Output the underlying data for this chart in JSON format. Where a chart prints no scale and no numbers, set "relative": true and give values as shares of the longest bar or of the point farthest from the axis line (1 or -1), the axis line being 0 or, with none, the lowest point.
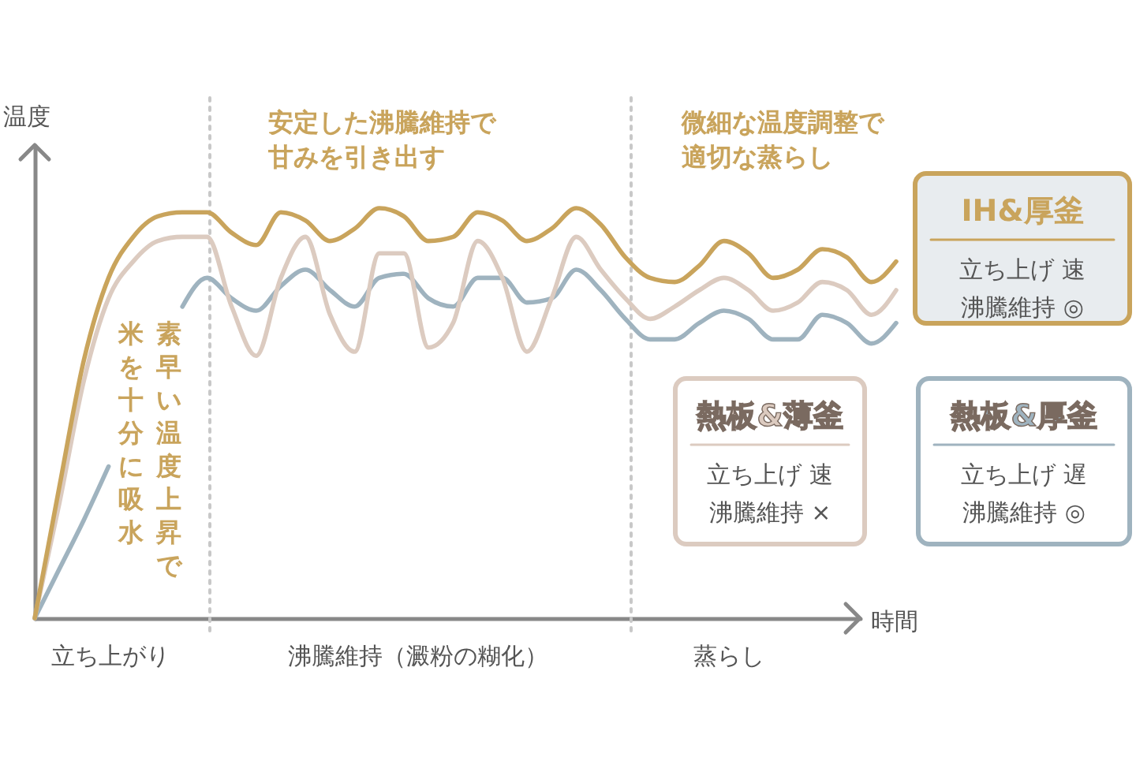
{
  "chart_data": {
    "type": "line",
    "relative": true,
    "xlabel": "時間",
    "ylabel": "温度",
    "legend": "right",
    "categories": [
      null,
      null,
      null,
      null,
      null,
      null,
      null,
      null,
      null,
      null,
      null,
      null,
      null,
      null,
      null,
      null,
      null,
      null,
      null,
      null,
      null,
      null,
      null,
      null,
      null,
      null,
      null,
      null,
      null,
      null,
      null,
      null,
      null,
      null,
      null,
      null
    ],
    "series": [
      {
        "name": "熱板&厚釜",
        "color": "#9fb3bf",
        "values": [
          0,
          0.12,
          0.24,
          0.37,
          null,
          null,
          0.76,
          0.83,
          0.78,
          0.75,
          0.81,
          0.85,
          0.8,
          0.76,
          0.83,
          0.84,
          0.78,
          0.76,
          0.83,
          0.83,
          0.77,
          0.78,
          0.85,
          0.8,
          0.73,
          0.68,
          0.68,
          0.72,
          0.75,
          0.73,
          0.68,
          0.68,
          0.74,
          0.72,
          0.67,
          0.72
        ]
      },
      {
        "name": "熱板&薄釜",
        "color": "#dccbc0",
        "values": [
          0,
          0.28,
          0.58,
          0.78,
          0.87,
          0.92,
          0.93,
          0.93,
          0.76,
          0.64,
          0.83,
          0.93,
          0.74,
          0.65,
          0.89,
          0.89,
          0.66,
          0.72,
          0.92,
          0.83,
          0.65,
          0.78,
          0.93,
          0.85,
          0.78,
          0.73,
          0.76,
          0.8,
          0.83,
          0.8,
          0.75,
          0.77,
          0.82,
          0.8,
          0.74,
          0.8
        ]
      },
      {
        "name": "IH&厚釜",
        "color": "#c9a45c",
        "values": [
          0,
          0.32,
          0.63,
          0.83,
          0.93,
          0.98,
          0.99,
          0.99,
          0.94,
          0.91,
          0.99,
          0.97,
          0.92,
          0.95,
          1.0,
          0.98,
          0.92,
          0.93,
          0.99,
          0.97,
          0.92,
          0.95,
          1.0,
          0.96,
          0.88,
          0.83,
          0.82,
          0.86,
          0.92,
          0.89,
          0.83,
          0.85,
          0.9,
          0.88,
          0.82,
          0.87
        ]
      }
    ],
    "annotations": [
      "安定した沸騰維持で",
      "甘みを引き出す",
      "微細な温度調整で",
      "適切な蒸らし",
      "素早い温度上昇で",
      "米を十分に吸水",
      "立ち上がり",
      "沸騰維持（澱粉の糊化）",
      "蒸らし",
      "立ち上げ 遅",
      "沸騰維持 ◎",
      "立ち上げ 速",
      "沸騰維持 ×",
      "立ち上げ 速",
      "沸騰維持 ◎"
    ]
  }
}
